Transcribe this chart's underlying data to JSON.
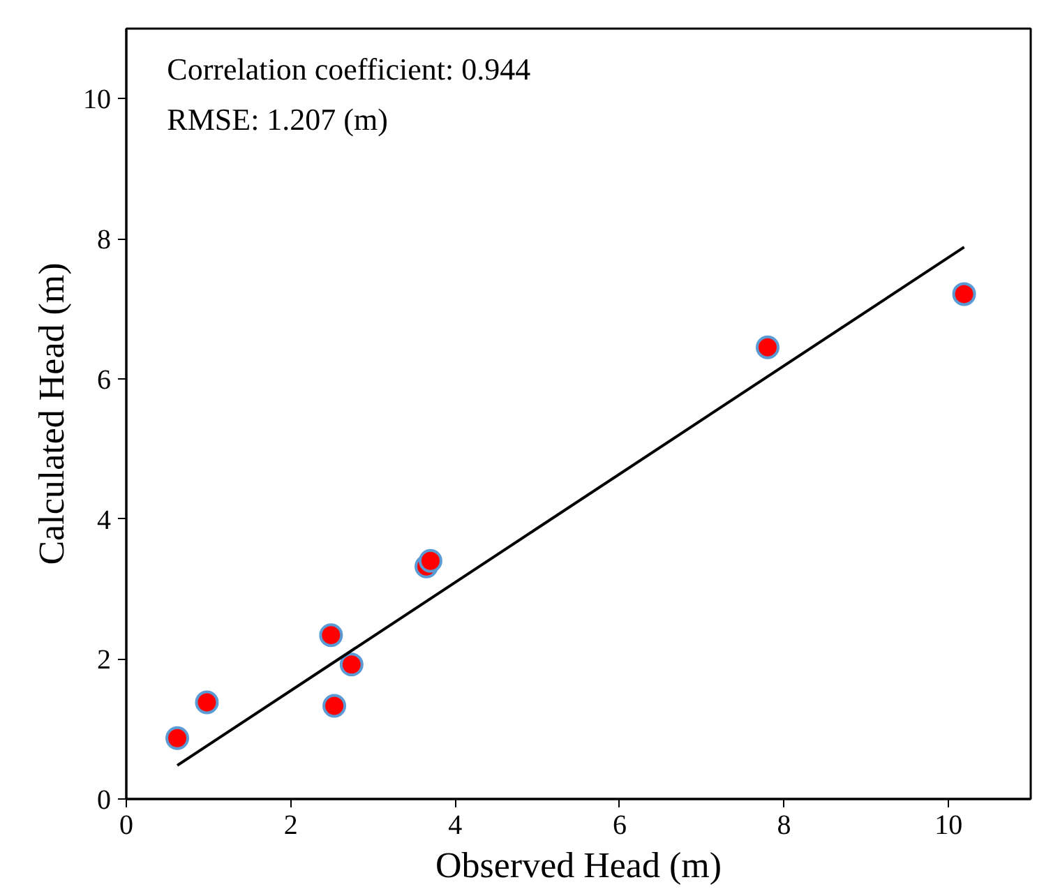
{
  "chart_data": {
    "type": "scatter",
    "xlabel": "Observed Head (m)",
    "ylabel": "Calculated Head (m)",
    "annotations": [
      "Correlation coefficient: 0.944",
      "RMSE: 1.207 (m)"
    ],
    "xlim": [
      0,
      11
    ],
    "ylim": [
      0,
      11
    ],
    "xticks": [
      0,
      2,
      4,
      6,
      8,
      10
    ],
    "yticks": [
      0,
      2,
      4,
      6,
      8,
      10
    ],
    "grid": false,
    "marker": "circle",
    "series": [
      {
        "type": "scatter",
        "color": "#ff0000",
        "x": [
          0.62,
          0.98,
          2.49,
          2.53,
          2.74,
          3.65,
          3.7,
          7.8,
          10.19
        ],
        "values": [
          0.87,
          1.38,
          2.34,
          1.33,
          1.92,
          3.32,
          3.4,
          6.45,
          7.21
        ]
      },
      {
        "type": "line",
        "marker": "none",
        "color": "#000000",
        "x": [
          0.62,
          10.19
        ],
        "values": [
          0.48,
          7.88
        ]
      }
    ]
  }
}
